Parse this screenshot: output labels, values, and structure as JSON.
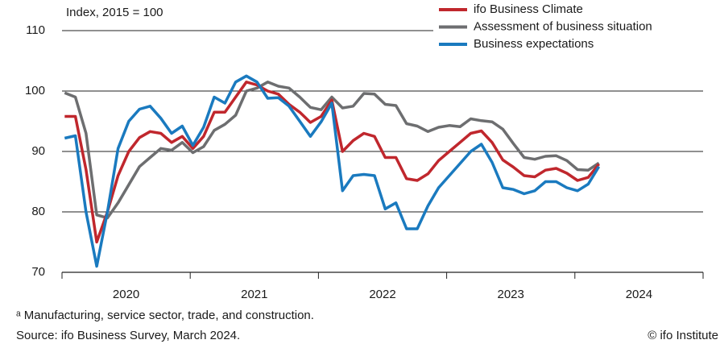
{
  "chart_data": {
    "type": "line",
    "ylabel": "Index, 2015 = 100",
    "x_year_labels": [
      "2020",
      "2021",
      "2022",
      "2023",
      "2024"
    ],
    "ylim": [
      70,
      110
    ],
    "yticks": [
      70,
      80,
      90,
      100,
      110
    ],
    "grid": true,
    "series": [
      {
        "name": "ifo Business Climate",
        "color": "#c0272d",
        "values": [
          95.8,
          95.8,
          87,
          75,
          80,
          86,
          90,
          92.3,
          93.3,
          93,
          91.5,
          92.5,
          90.5,
          92.5,
          96.5,
          96.5,
          99,
          101.5,
          101,
          100,
          99.5,
          97.8,
          96.5,
          94.8,
          95.8,
          98.5,
          90,
          91.8,
          93,
          92.5,
          89,
          89,
          85.5,
          85.2,
          86.3,
          88.5,
          90,
          91.5,
          93,
          93.4,
          91.5,
          88.6,
          87.4,
          86,
          85.8,
          86.9,
          87.2,
          86.4,
          85.2,
          85.7,
          87.9
        ]
      },
      {
        "name": "Assessment of business situation",
        "color": "#6d6e70",
        "values": [
          99.7,
          99,
          93,
          79.5,
          79,
          81.5,
          84.5,
          87.5,
          89,
          90.5,
          90.2,
          91.5,
          89.8,
          90.8,
          93.5,
          94.5,
          96,
          100,
          100.5,
          101.5,
          100.8,
          100.5,
          99,
          97.3,
          96.9,
          99,
          97.2,
          97.5,
          99.6,
          99.5,
          97.8,
          97.6,
          94.6,
          94.2,
          93.3,
          94,
          94.3,
          94.1,
          95.4,
          95.1,
          94.9,
          93.7,
          91.3,
          89,
          88.7,
          89.2,
          89.3,
          88.5,
          87,
          86.9,
          88.1
        ]
      },
      {
        "name": "Business expectations",
        "color": "#1a7abf",
        "values": [
          92.2,
          92.6,
          80,
          71,
          80,
          90.5,
          95,
          97,
          97.5,
          95.5,
          93,
          94.2,
          91,
          94,
          99,
          98,
          101.5,
          102.5,
          101.5,
          98.8,
          98.9,
          97.5,
          95,
          92.5,
          94.9,
          98,
          83.5,
          86,
          86.2,
          86,
          80.5,
          81.5,
          77.2,
          77.2,
          81,
          84,
          86,
          88,
          90,
          91.2,
          88.2,
          84,
          83.7,
          83,
          83.5,
          85,
          85,
          84,
          83.5,
          84.6,
          87.5
        ]
      }
    ]
  },
  "footnote": "ᵃ Manufacturing, service sector, trade, and construction.",
  "source": "Source: ifo Business Survey, March 2024.",
  "copyright": "© ifo Institute"
}
